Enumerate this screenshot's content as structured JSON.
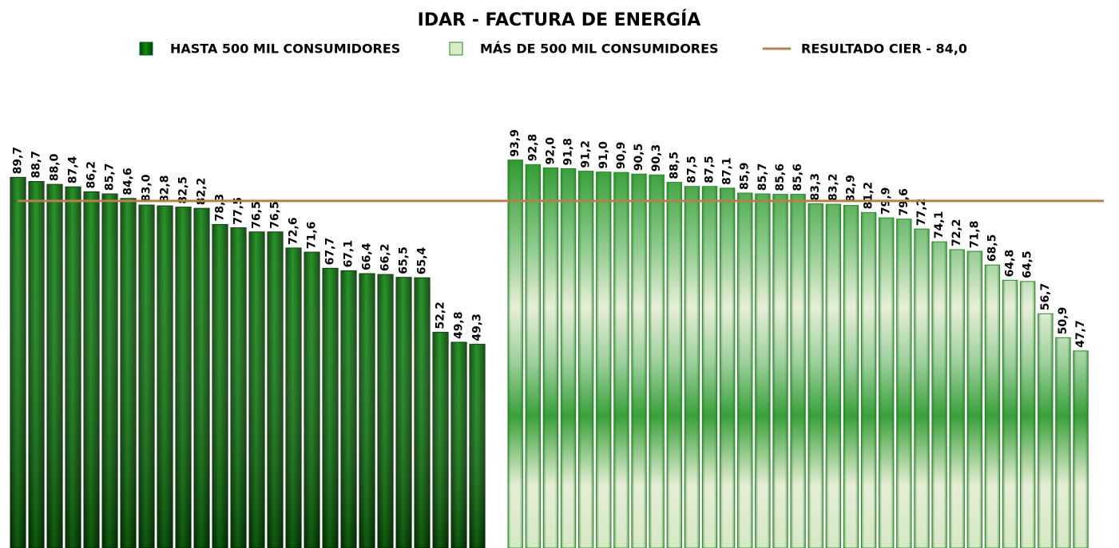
{
  "chart_data": {
    "type": "bar",
    "title": "IDAR - FACTURA DE ENERGÍA",
    "series": [
      {
        "name": "HASTA 500 MIL CONSUMIDORES",
        "color": "#0a6e0a",
        "values": [
          89.7,
          88.7,
          88.0,
          87.4,
          86.2,
          85.7,
          84.6,
          83.0,
          82.8,
          82.5,
          82.2,
          78.3,
          77.5,
          76.5,
          76.5,
          72.6,
          71.6,
          67.7,
          67.1,
          66.4,
          66.2,
          65.5,
          65.4,
          52.2,
          49.8,
          49.3
        ],
        "value_labels": [
          "89,7",
          "88,7",
          "88,0",
          "87,4",
          "86,2",
          "85,7",
          "84,6",
          "83,0",
          "82,8",
          "82,5",
          "82,2",
          "78,3",
          "77,5",
          "76,5",
          "76,5",
          "72,6",
          "71,6",
          "67,7",
          "67,1",
          "66,4",
          "66,2",
          "65,5",
          "65,4",
          "52,2",
          "49,8",
          "49,3"
        ]
      },
      {
        "name": "MÁS DE 500 MIL CONSUMIDORES",
        "color": "#c8e6b8",
        "values": [
          93.9,
          92.8,
          92.0,
          91.8,
          91.2,
          91.0,
          90.9,
          90.5,
          90.3,
          88.5,
          87.5,
          87.5,
          87.1,
          85.9,
          85.7,
          85.6,
          85.6,
          83.3,
          83.2,
          82.9,
          81.2,
          79.9,
          79.6,
          77.2,
          74.1,
          72.2,
          71.8,
          68.5,
          64.8,
          64.5,
          56.7,
          50.9,
          47.7
        ],
        "value_labels": [
          "93,9",
          "92,8",
          "92,0",
          "91,8",
          "91,2",
          "91,0",
          "90,9",
          "90,5",
          "90,3",
          "88,5",
          "87,5",
          "87,5",
          "87,1",
          "85,9",
          "85,7",
          "85,6",
          "85,6",
          "83,3",
          "83,2",
          "82,9",
          "81,2",
          "79,9",
          "79,6",
          "77,2",
          "74,1",
          "72,2",
          "71,8",
          "68,5",
          "64,8",
          "64,5",
          "56,7",
          "50,9",
          "47,7"
        ]
      }
    ],
    "reference_line": {
      "name": "RESULTADO CIER - 84,0",
      "value": 84.0,
      "color": "#b5804a"
    }
  }
}
